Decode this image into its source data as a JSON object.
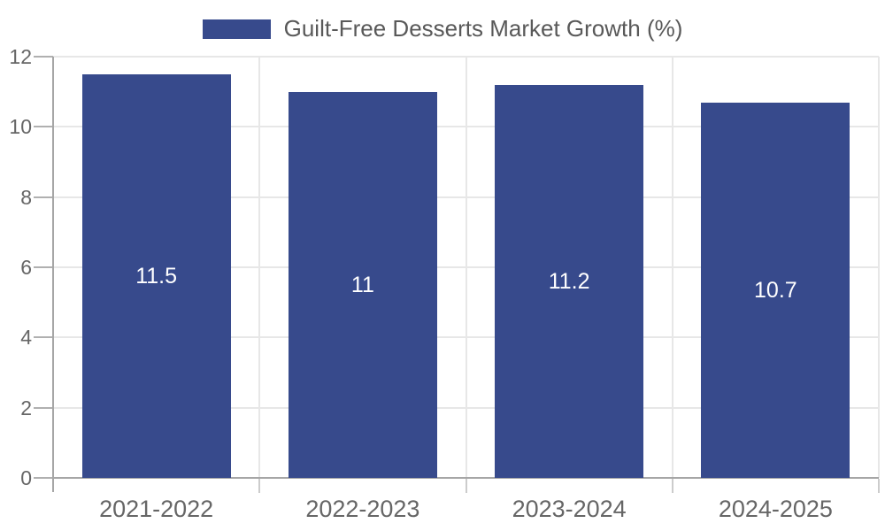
{
  "chart_data": {
    "type": "bar",
    "title": "Guilt-Free Desserts Market Growth (%)",
    "categories": [
      "2021-2022",
      "2022-2023",
      "2023-2024",
      "2024-2025"
    ],
    "values": [
      11.5,
      11,
      11.2,
      10.7
    ],
    "value_labels": [
      "11.5",
      "11",
      "11.2",
      "10.7"
    ],
    "xlabel": "",
    "ylabel": "",
    "ylim": [
      0,
      12
    ],
    "yticks": [
      0,
      2,
      4,
      6,
      8,
      10,
      12
    ],
    "grid": true,
    "legend_position": "top-center",
    "colors": {
      "bar": "#374a8c",
      "axis": "#a6a6a6",
      "gridline": "#e7e7e7",
      "tick": "#b0b0b0",
      "boundary_tick": "#cccccc",
      "tick_label": "#666666",
      "legend_text": "#595959",
      "value_label": "#ffffff",
      "background": "#ffffff"
    }
  }
}
